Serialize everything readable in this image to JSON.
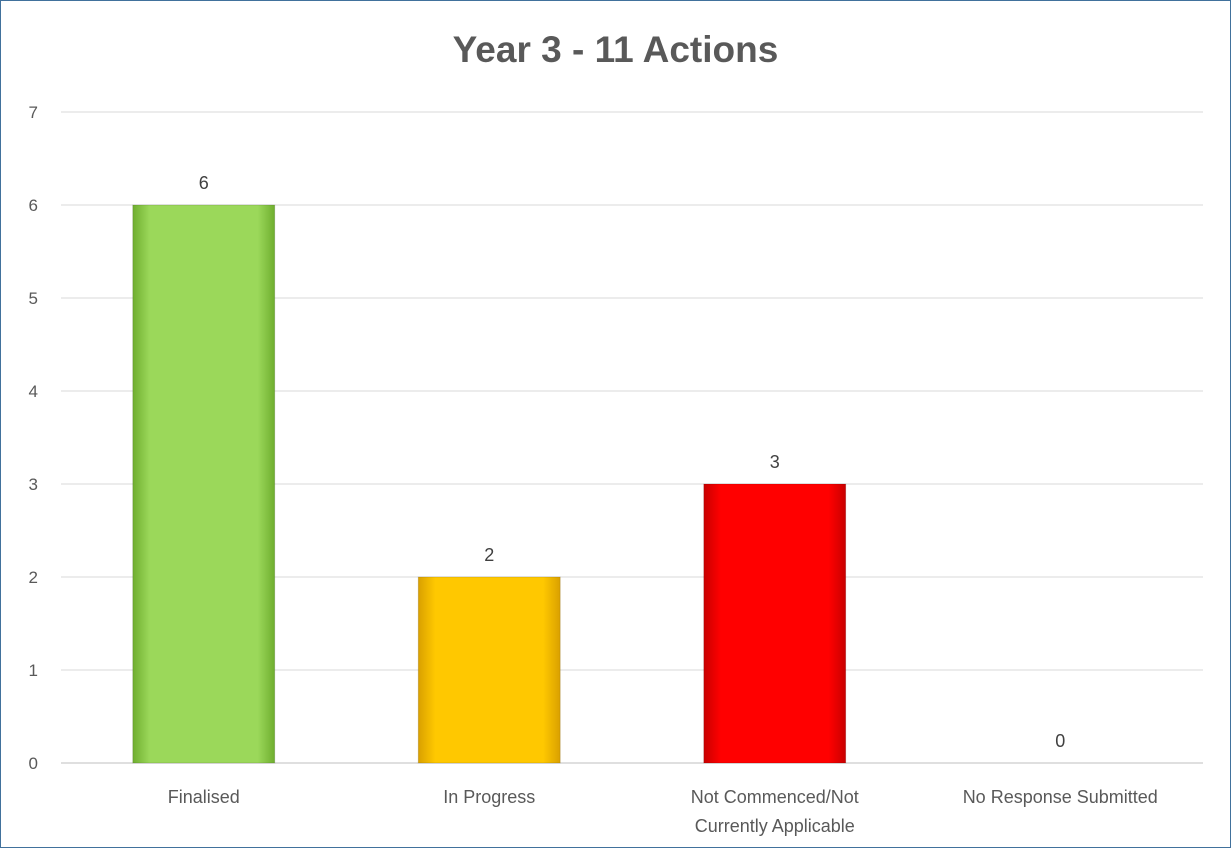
{
  "chart_data": {
    "type": "bar",
    "title": "Year 3 - 11 Actions",
    "xlabel": "",
    "ylabel": "",
    "categories": [
      "Finalised",
      "In Progress",
      "Not Commenced/Not Currently Applicable",
      "No Response Submitted"
    ],
    "category_lines": [
      [
        "Finalised"
      ],
      [
        "In Progress"
      ],
      [
        "Not Commenced/Not",
        "Currently Applicable"
      ],
      [
        "No Response Submitted"
      ]
    ],
    "values": [
      6,
      2,
      3,
      0
    ],
    "colors": [
      "#92d050",
      "#ffc000",
      "#ff0000",
      "#a5a5a5"
    ],
    "data_labels": [
      "6",
      "2",
      "3",
      "0"
    ],
    "ylim": [
      0,
      7
    ],
    "yticks": [
      "0",
      "1",
      "2",
      "3",
      "4",
      "5",
      "6",
      "7"
    ],
    "grid": true,
    "legend": "none"
  }
}
